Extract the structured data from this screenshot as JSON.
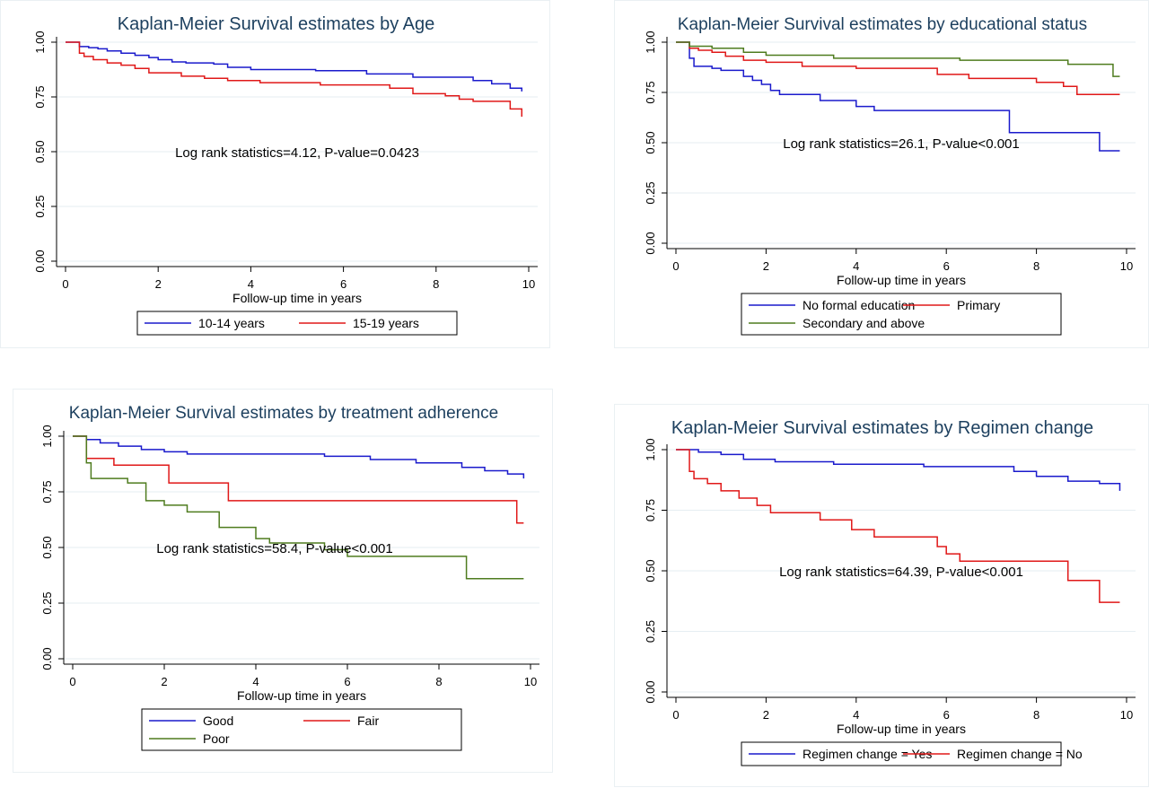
{
  "chart_data": [
    {
      "type": "line",
      "step": true,
      "title": "Kaplan-Meier Survival estimates by Age",
      "xlabel": "Follow-up time in years",
      "ylabel": "",
      "xlim": [
        0,
        10
      ],
      "ylim": [
        0,
        1
      ],
      "xticks": [
        "0",
        "2",
        "4",
        "6",
        "8",
        "10"
      ],
      "yticks": [
        "0.00",
        "0.25",
        "0.50",
        "0.75",
        "1.00"
      ],
      "grid": true,
      "legend_position": "bottom",
      "annotation": "Log rank statistics=4.12, P-value=0.0423",
      "series": [
        {
          "name": "10-14 years",
          "color": "#1a1acc",
          "x": [
            0,
            0.3,
            0.5,
            0.7,
            0.9,
            1.2,
            1.5,
            1.8,
            2.0,
            2.3,
            2.6,
            3.2,
            3.5,
            4.0,
            4.8,
            5.4,
            6.5,
            7.5,
            8.8,
            9.2,
            9.6,
            9.85
          ],
          "y": [
            1.0,
            0.98,
            0.975,
            0.97,
            0.96,
            0.95,
            0.94,
            0.93,
            0.92,
            0.91,
            0.905,
            0.9,
            0.885,
            0.875,
            0.875,
            0.87,
            0.855,
            0.84,
            0.825,
            0.81,
            0.79,
            0.775
          ]
        },
        {
          "name": "15-19 years",
          "color": "#e01818",
          "x": [
            0,
            0.3,
            0.4,
            0.6,
            0.9,
            1.2,
            1.5,
            1.8,
            2.5,
            3.0,
            3.5,
            4.2,
            5.5,
            7.0,
            7.5,
            8.2,
            8.5,
            8.8,
            9.6,
            9.85
          ],
          "y": [
            1.0,
            0.95,
            0.935,
            0.92,
            0.905,
            0.895,
            0.88,
            0.86,
            0.845,
            0.835,
            0.825,
            0.815,
            0.805,
            0.79,
            0.765,
            0.755,
            0.74,
            0.73,
            0.695,
            0.66
          ]
        }
      ]
    },
    {
      "type": "line",
      "step": true,
      "title": "Kaplan-Meier Survival estimates by educational status",
      "xlabel": "Follow-up time in years",
      "ylabel": "",
      "xlim": [
        0,
        10
      ],
      "ylim": [
        0,
        1
      ],
      "xticks": [
        "0",
        "2",
        "4",
        "6",
        "8",
        "10"
      ],
      "yticks": [
        "0.00",
        "0.25",
        "0.50",
        "0.75",
        "1.00"
      ],
      "grid": true,
      "legend_position": "bottom",
      "annotation": "Log rank statistics=26.1, P-value<0.001",
      "series": [
        {
          "name": "No formal education",
          "color": "#1a1acc",
          "x": [
            0,
            0.3,
            0.4,
            0.8,
            1.0,
            1.5,
            1.7,
            1.9,
            2.1,
            2.3,
            3.2,
            4.0,
            4.4,
            7.4,
            9.4,
            9.85
          ],
          "y": [
            1.0,
            0.92,
            0.88,
            0.87,
            0.86,
            0.83,
            0.81,
            0.79,
            0.76,
            0.74,
            0.71,
            0.68,
            0.66,
            0.55,
            0.46,
            0.46
          ]
        },
        {
          "name": "Primary",
          "color": "#e01818",
          "x": [
            0,
            0.3,
            0.5,
            0.8,
            1.1,
            1.5,
            2.0,
            2.8,
            4.0,
            5.8,
            6.5,
            8.0,
            8.6,
            8.9,
            9.85
          ],
          "y": [
            1.0,
            0.97,
            0.96,
            0.95,
            0.93,
            0.91,
            0.9,
            0.88,
            0.87,
            0.84,
            0.82,
            0.8,
            0.78,
            0.74,
            0.74
          ]
        },
        {
          "name": "Secondary and above",
          "color": "#4f7c1f",
          "x": [
            0,
            0.3,
            0.8,
            1.5,
            2.0,
            3.5,
            6.3,
            8.7,
            9.7,
            9.85
          ],
          "y": [
            1.0,
            0.98,
            0.97,
            0.95,
            0.935,
            0.92,
            0.91,
            0.89,
            0.83,
            0.83
          ]
        }
      ]
    },
    {
      "type": "line",
      "step": true,
      "title": "Kaplan-Meier Survival estimates by treatment adherence",
      "xlabel": "Follow-up time in years",
      "ylabel": "",
      "xlim": [
        0,
        10
      ],
      "ylim": [
        0,
        1
      ],
      "xticks": [
        "0",
        "2",
        "4",
        "6",
        "8",
        "10"
      ],
      "yticks": [
        "0.00",
        "0.25",
        "0.50",
        "0.75",
        "1.00"
      ],
      "grid": true,
      "legend_position": "bottom",
      "annotation": "Log rank statistics=58.4, P-value<0.001",
      "series": [
        {
          "name": "Good",
          "color": "#1a1acc",
          "x": [
            0,
            0.3,
            0.6,
            1.0,
            1.5,
            2.0,
            2.5,
            5.5,
            6.5,
            7.5,
            8.5,
            9.0,
            9.5,
            9.85
          ],
          "y": [
            1.0,
            0.985,
            0.97,
            0.955,
            0.94,
            0.93,
            0.92,
            0.91,
            0.895,
            0.88,
            0.86,
            0.845,
            0.83,
            0.81
          ]
        },
        {
          "name": "Fair",
          "color": "#e01818",
          "x": [
            0,
            0.3,
            0.9,
            2.1,
            3.4,
            9.7,
            9.85
          ],
          "y": [
            1.0,
            0.9,
            0.87,
            0.79,
            0.71,
            0.61,
            0.61
          ]
        },
        {
          "name": "Poor",
          "color": "#4f7c1f",
          "x": [
            0,
            0.3,
            0.4,
            1.2,
            1.6,
            2.0,
            2.5,
            3.2,
            4.0,
            4.3,
            5.5,
            6.0,
            8.6,
            9.85
          ],
          "y": [
            1.0,
            0.88,
            0.81,
            0.79,
            0.71,
            0.69,
            0.66,
            0.59,
            0.54,
            0.52,
            0.49,
            0.46,
            0.36,
            0.36
          ]
        }
      ]
    },
    {
      "type": "line",
      "step": true,
      "title": "Kaplan-Meier Survival estimates by Regimen change",
      "xlabel": "Follow-up time in years",
      "ylabel": "",
      "xlim": [
        0,
        10
      ],
      "ylim": [
        0,
        1
      ],
      "xticks": [
        "0",
        "2",
        "4",
        "6",
        "8",
        "10"
      ],
      "yticks": [
        "0.00",
        "0.25",
        "0.50",
        "0.75",
        "1.00"
      ],
      "grid": true,
      "legend_position": "bottom",
      "annotation": "Log rank statistics=64.39, P-value<0.001",
      "series": [
        {
          "name": "Regimen change = Yes",
          "color": "#1a1acc",
          "x": [
            0,
            0.5,
            1.0,
            1.5,
            2.2,
            3.5,
            5.5,
            7.5,
            8.0,
            8.7,
            9.4,
            9.85
          ],
          "y": [
            1.0,
            0.99,
            0.98,
            0.96,
            0.95,
            0.94,
            0.93,
            0.91,
            0.89,
            0.87,
            0.86,
            0.83
          ]
        },
        {
          "name": "Regimen change = No",
          "color": "#e01818",
          "x": [
            0,
            0.3,
            0.4,
            0.7,
            1.0,
            1.4,
            1.8,
            2.1,
            3.2,
            3.9,
            4.4,
            5.8,
            6.0,
            6.3,
            8.7,
            9.4,
            9.85
          ],
          "y": [
            1.0,
            0.91,
            0.88,
            0.86,
            0.83,
            0.8,
            0.77,
            0.74,
            0.71,
            0.67,
            0.64,
            0.6,
            0.57,
            0.54,
            0.46,
            0.37,
            0.37
          ]
        }
      ]
    }
  ]
}
